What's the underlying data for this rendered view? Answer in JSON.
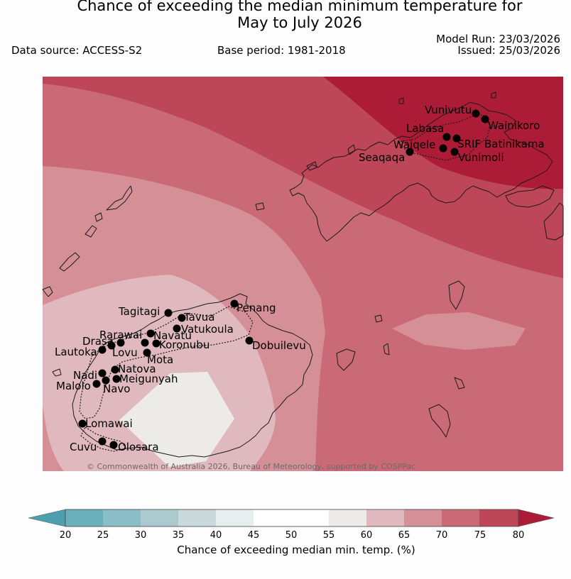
{
  "title_line1": "Chance of exceeding the median minimum temperature for",
  "title_line2": "May to July 2026",
  "model_run": "Model Run: 23/03/2026",
  "issued": "Issued: 25/03/2026",
  "data_source": "Data source: ACCESS-S2",
  "base_period": "Base period: 1981-2018",
  "copyright": "© Commonwealth of Australia 2026, Bureau of Meteorology, supported by COSPPac",
  "colorbar": {
    "title": "Chance of exceeding median min. temp. (%)",
    "ticks": [
      "20",
      "25",
      "30",
      "35",
      "40",
      "45",
      "50",
      "55",
      "60",
      "65",
      "70",
      "75",
      "80"
    ],
    "colors": {
      "below20": "#4e9fad",
      "b20_25": "#6baebc",
      "b25_30": "#8bbdc6",
      "b30_35": "#abc9cf",
      "b35_40": "#c9d9dc",
      "b40_45": "#e8eeef",
      "b45_50": "#ffffff",
      "b50_55": "#ffffff",
      "b55_60": "#ecebea",
      "b60_65": "#e0b9bf",
      "b65_70": "#d58f97",
      "b70_75": "#c96a76",
      "b75_80": "#bd4658",
      "above80": "#ad1c37"
    }
  },
  "stations": {
    "vunivutu": "Vunivutu",
    "wainikoro": "Wainikoro",
    "labasa": "Labasa",
    "waiqele": "Waiqele",
    "srif": "SRIF",
    "batinikama": "Batinikama",
    "vunimoli": "Vunimoli",
    "seaqaqa": "Seaqaqa",
    "tagitagi": "Tagitagi",
    "tavua": "Tavua",
    "penang": "Penang",
    "rarawai": "Rarawai",
    "navatu": "Navatu",
    "vatukoula": "Vatukoula",
    "drasa": "Drasa",
    "koronubu": "Koronubu",
    "lautoka": "Lautoka",
    "lovu": "Lovu",
    "dobuilevu": "Dobuilevu",
    "mota": "Mota",
    "natova": "Natova",
    "nadi": "Nadi",
    "meigunyah": "Meigunyah",
    "malolo": "Malolo",
    "navo": "Navo",
    "lomawai": "Lomawai",
    "cuvu": "Cuvu",
    "olosara": "Olosara"
  }
}
